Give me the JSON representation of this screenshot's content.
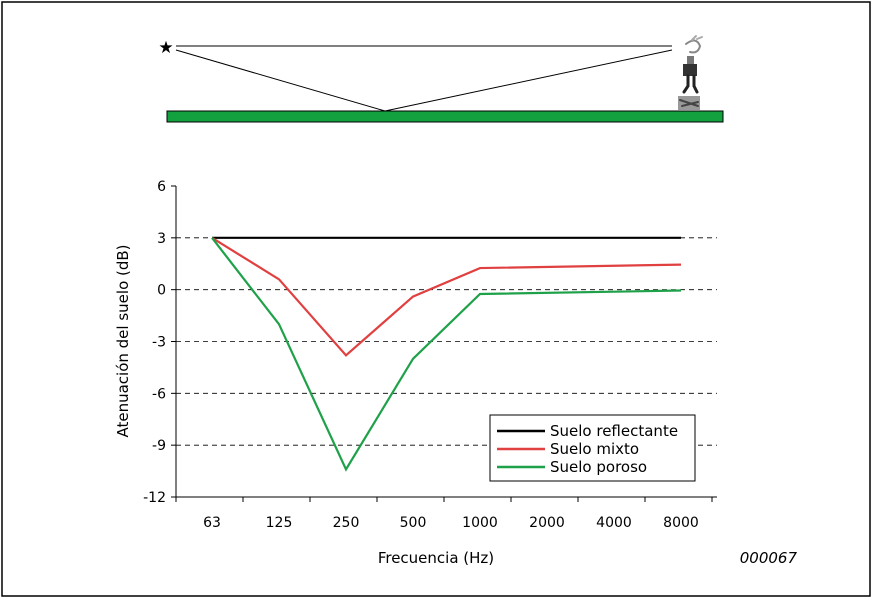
{
  "figure_code": "000067",
  "colors": {
    "ground_strip": "#13a13f",
    "reflectante": "#000000",
    "mixto": "#e04040",
    "poroso": "#1fa14a"
  },
  "icons": {
    "source": "star-icon",
    "receiver": "listener-icon"
  },
  "chart_data": {
    "type": "line",
    "x": [
      "63",
      "125",
      "250",
      "500",
      "1000",
      "2000",
      "4000",
      "8000"
    ],
    "xlabel": "Frecuencia (Hz)",
    "ylabel": "Atenuación del suelo (dB)",
    "ylim": [
      -12,
      6
    ],
    "yticks": [
      -12,
      -9,
      -6,
      -3,
      0,
      3,
      6
    ],
    "grid": "horizontal dashed",
    "legend_position": "bottom-right",
    "series": [
      {
        "name": "Suelo reflectante",
        "color": "#000000",
        "points": [
          {
            "x": "63",
            "y": 3
          },
          {
            "x": "8000",
            "y": 3
          }
        ]
      },
      {
        "name": "Suelo mixto",
        "color": "#e04040",
        "points": [
          {
            "x": "63",
            "y": 3
          },
          {
            "x": "125",
            "y": 0.6
          },
          {
            "x": "250",
            "y": -3.8
          },
          {
            "x": "500",
            "y": -0.4
          },
          {
            "x": "1000",
            "y": 1.25
          },
          {
            "x": "8000",
            "y": 1.45
          }
        ]
      },
      {
        "name": "Suelo poroso",
        "color": "#1fa14a",
        "points": [
          {
            "x": "63",
            "y": 3
          },
          {
            "x": "125",
            "y": -2
          },
          {
            "x": "250",
            "y": -10.4
          },
          {
            "x": "500",
            "y": -4
          },
          {
            "x": "1000",
            "y": -0.25
          },
          {
            "x": "8000",
            "y": -0.05
          }
        ]
      }
    ]
  }
}
